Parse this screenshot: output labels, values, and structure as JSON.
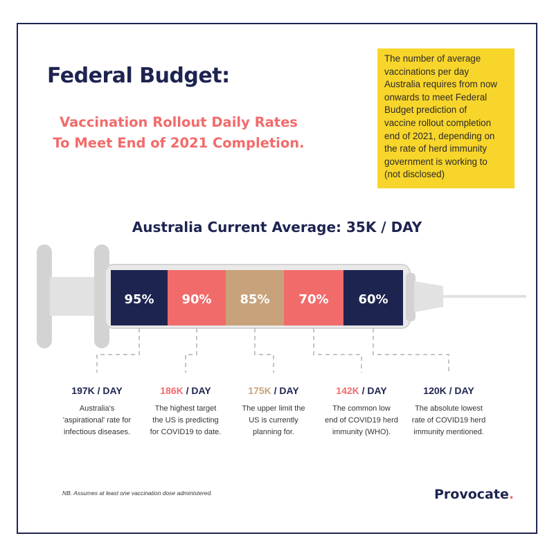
{
  "title": "Federal Budget:",
  "subtitle_line1": "Vaccination Rollout Daily Rates",
  "subtitle_line2": "To Meet End of 2021 Completion.",
  "note_lines": [
    "The number of average",
    "vaccinations per day",
    "Australia requires from now",
    "onwards to meet Federal",
    "Budget prediction of",
    "vaccine rollout completion",
    "end of 2021, depending on",
    "the rate of herd immunity",
    "government is working to",
    "(not disclosed)"
  ],
  "current_average": "Australia Current Average: 35K / DAY",
  "segments": [
    {
      "label": "95%",
      "color": "#1e2450"
    },
    {
      "label": "90%",
      "color": "#f26b6b"
    },
    {
      "label": "85%",
      "color": "#c7a27a"
    },
    {
      "label": "70%",
      "color": "#f26b6b"
    },
    {
      "label": "60%",
      "color": "#1e2450"
    }
  ],
  "rates": [
    {
      "value": "197K",
      "unit": " / DAY",
      "value_color": "#1e2450",
      "desc": [
        "Australia's",
        "'aspirational' rate for",
        "infectious diseases."
      ]
    },
    {
      "value": "186K",
      "unit": " / DAY",
      "value_color": "#f26b6b",
      "desc": [
        "The highest target",
        "the US is predicting",
        "for COVID19 to date."
      ]
    },
    {
      "value": "175K",
      "unit": " / DAY",
      "value_color": "#c7a27a",
      "desc": [
        "The upper limit the",
        "US is currently",
        "planning for."
      ]
    },
    {
      "value": "142K",
      "unit": " / DAY",
      "value_color": "#f26b6b",
      "desc": [
        "The common low",
        "end of COVID19 herd",
        "immunity (WHO)."
      ]
    },
    {
      "value": "120K",
      "unit": " / DAY",
      "value_color": "#1e2450",
      "desc": [
        "The absolute lowest",
        "rate of COVID19 herd",
        "immunity mentioned."
      ]
    }
  ],
  "footnote": "NB. Assumes at least one vaccination dose administered.",
  "brand": "Provocate",
  "brand_mark": ".",
  "colors": {
    "navy": "#1e2450",
    "coral": "#f26b6b",
    "tan": "#c7a27a",
    "yellow": "#f8d52b",
    "gray": "#d3d3d3"
  }
}
